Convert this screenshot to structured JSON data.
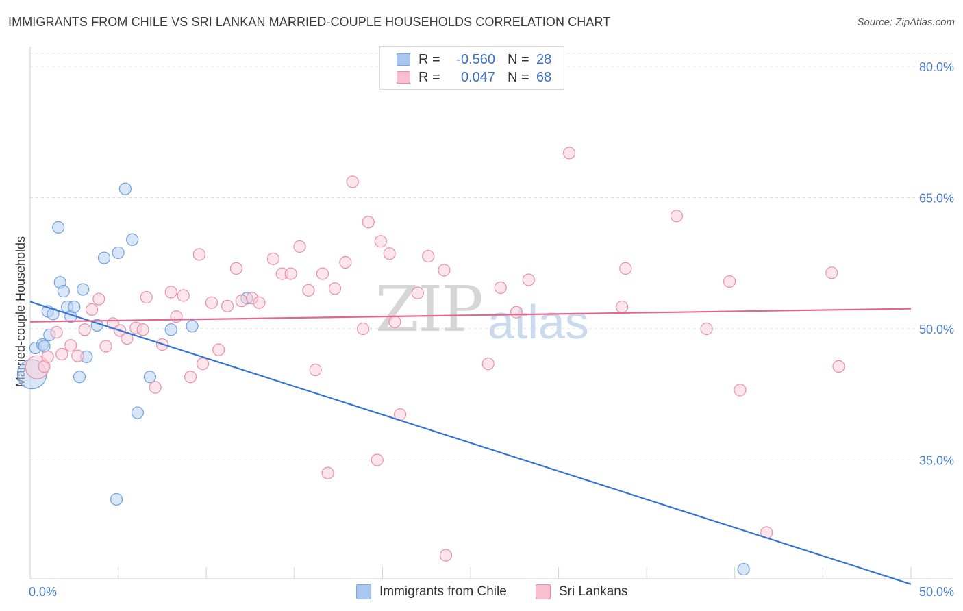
{
  "header": {
    "title": "IMMIGRANTS FROM CHILE VS SRI LANKAN MARRIED-COUPLE HOUSEHOLDS CORRELATION CHART",
    "source": "Source: ZipAtlas.com"
  },
  "watermark": {
    "part1": "ZIP",
    "part2": "atlas"
  },
  "legend": {
    "rows": [
      {
        "r_label": "R =",
        "r_value": "-0.560",
        "n_label": "N =",
        "n_value": "28",
        "color": "#a9c7ef",
        "border": "#7aa6e0"
      },
      {
        "r_label": "R =",
        "r_value": "0.047",
        "n_label": "N =",
        "n_value": "68",
        "color": "#f7bfd0",
        "border": "#ea8fab"
      }
    ]
  },
  "bottom_legend": [
    {
      "label": "Immigrants from Chile",
      "color": "#a9c7ef",
      "border": "#7aa6e0"
    },
    {
      "label": "Sri Lankans",
      "color": "#f7bfd0",
      "border": "#ea8fab"
    }
  ],
  "chart_data": {
    "type": "scatter",
    "title": "IMMIGRANTS FROM CHILE VS SRI LANKAN MARRIED-COUPLE HOUSEHOLDS CORRELATION CHART",
    "xlabel": "",
    "ylabel": "Married-couple Households",
    "xlim": [
      0,
      50
    ],
    "ylim": [
      20,
      84
    ],
    "x_tick_labels": [
      "0.0%",
      "50.0%"
    ],
    "y_ticks": [
      35,
      50,
      65,
      80
    ],
    "y_tick_labels": [
      "35.0%",
      "50.0%",
      "65.0%",
      "80.0%"
    ],
    "series": [
      {
        "name": "Immigrants from Chile",
        "color": "#6f9fe0",
        "fill": "#b9d2f3",
        "trend": {
          "x": [
            0,
            50
          ],
          "y": [
            53.1,
            20.8
          ],
          "color": "#3474d4"
        },
        "points": [
          [
            0.1,
            44.8,
            2.5
          ],
          [
            0.3,
            47.8,
            1
          ],
          [
            0.7,
            48.2,
            1
          ],
          [
            0.8,
            48.0,
            1
          ],
          [
            1.0,
            52.0,
            1
          ],
          [
            1.1,
            49.3,
            1
          ],
          [
            1.3,
            51.7,
            1
          ],
          [
            1.6,
            61.6,
            1
          ],
          [
            1.7,
            55.3,
            1
          ],
          [
            1.9,
            54.3,
            1
          ],
          [
            2.1,
            52.5,
            1
          ],
          [
            2.3,
            51.4,
            1
          ],
          [
            2.5,
            52.5,
            1
          ],
          [
            2.8,
            44.5,
            1
          ],
          [
            3.0,
            54.5,
            1
          ],
          [
            3.2,
            46.8,
            1
          ],
          [
            3.8,
            50.4,
            1
          ],
          [
            4.2,
            58.1,
            1
          ],
          [
            4.9,
            30.5,
            1
          ],
          [
            5.0,
            58.7,
            1
          ],
          [
            5.4,
            66.0,
            1
          ],
          [
            5.8,
            60.2,
            1
          ],
          [
            6.1,
            40.4,
            1
          ],
          [
            6.8,
            44.5,
            1
          ],
          [
            8.0,
            49.9,
            1
          ],
          [
            9.2,
            50.3,
            1
          ],
          [
            12.3,
            53.5,
            1
          ],
          [
            40.5,
            22.5,
            1
          ]
        ]
      },
      {
        "name": "Sri Lankans",
        "color": "#e98fab",
        "fill": "#f9cfdb",
        "trend": {
          "x": [
            0,
            50
          ],
          "y": [
            50.8,
            52.3
          ],
          "color": "#e0678f"
        },
        "points": [
          [
            0.4,
            45.6,
            2.0
          ],
          [
            0.8,
            45.7,
            1
          ],
          [
            1.0,
            46.8,
            1
          ],
          [
            1.5,
            49.6,
            1
          ],
          [
            1.8,
            47.1,
            1
          ],
          [
            2.3,
            48.1,
            1
          ],
          [
            2.7,
            46.9,
            1
          ],
          [
            3.1,
            49.9,
            1
          ],
          [
            3.5,
            52.2,
            1
          ],
          [
            3.9,
            53.4,
            1
          ],
          [
            4.3,
            48.0,
            1
          ],
          [
            4.7,
            50.6,
            1
          ],
          [
            5.1,
            49.8,
            1
          ],
          [
            5.5,
            48.9,
            1
          ],
          [
            6.0,
            50.1,
            1
          ],
          [
            6.4,
            49.9,
            1
          ],
          [
            6.6,
            53.6,
            1
          ],
          [
            7.1,
            43.3,
            1
          ],
          [
            7.5,
            48.2,
            1
          ],
          [
            8.0,
            54.2,
            1
          ],
          [
            8.3,
            51.4,
            1
          ],
          [
            8.7,
            53.8,
            1
          ],
          [
            9.1,
            44.5,
            1
          ],
          [
            9.6,
            58.5,
            1
          ],
          [
            9.8,
            46.0,
            1
          ],
          [
            10.3,
            53.0,
            1
          ],
          [
            10.7,
            47.6,
            1
          ],
          [
            11.2,
            52.6,
            1
          ],
          [
            11.7,
            56.9,
            1
          ],
          [
            12.0,
            53.2,
            1
          ],
          [
            12.6,
            53.5,
            1
          ],
          [
            13.0,
            53.0,
            1
          ],
          [
            13.8,
            58.0,
            1
          ],
          [
            14.3,
            56.3,
            1
          ],
          [
            14.8,
            56.3,
            1
          ],
          [
            15.3,
            59.4,
            1
          ],
          [
            15.8,
            54.4,
            1
          ],
          [
            16.2,
            45.3,
            1
          ],
          [
            16.6,
            56.3,
            1
          ],
          [
            16.9,
            33.5,
            1
          ],
          [
            17.3,
            54.6,
            1
          ],
          [
            17.9,
            57.6,
            1
          ],
          [
            18.3,
            66.8,
            1
          ],
          [
            18.9,
            50.0,
            1
          ],
          [
            19.2,
            62.2,
            1
          ],
          [
            19.7,
            35.0,
            1
          ],
          [
            19.9,
            60.0,
            1
          ],
          [
            20.4,
            58.6,
            1
          ],
          [
            20.7,
            50.8,
            1
          ],
          [
            21.0,
            40.2,
            1
          ],
          [
            22.0,
            54.1,
            1
          ],
          [
            22.6,
            58.3,
            1
          ],
          [
            23.5,
            56.7,
            1
          ],
          [
            23.6,
            24.1,
            1
          ],
          [
            26.0,
            46.0,
            1
          ],
          [
            26.7,
            54.7,
            1
          ],
          [
            27.6,
            51.9,
            1
          ],
          [
            28.3,
            55.6,
            1
          ],
          [
            30.6,
            70.1,
            1
          ],
          [
            33.6,
            52.5,
            1
          ],
          [
            33.8,
            56.9,
            1
          ],
          [
            36.7,
            62.9,
            1
          ],
          [
            38.4,
            50.0,
            1
          ],
          [
            39.7,
            55.4,
            1
          ],
          [
            40.3,
            43.0,
            1
          ],
          [
            41.8,
            26.7,
            1
          ],
          [
            45.5,
            56.4,
            1
          ],
          [
            45.9,
            45.7,
            1
          ]
        ]
      }
    ]
  }
}
